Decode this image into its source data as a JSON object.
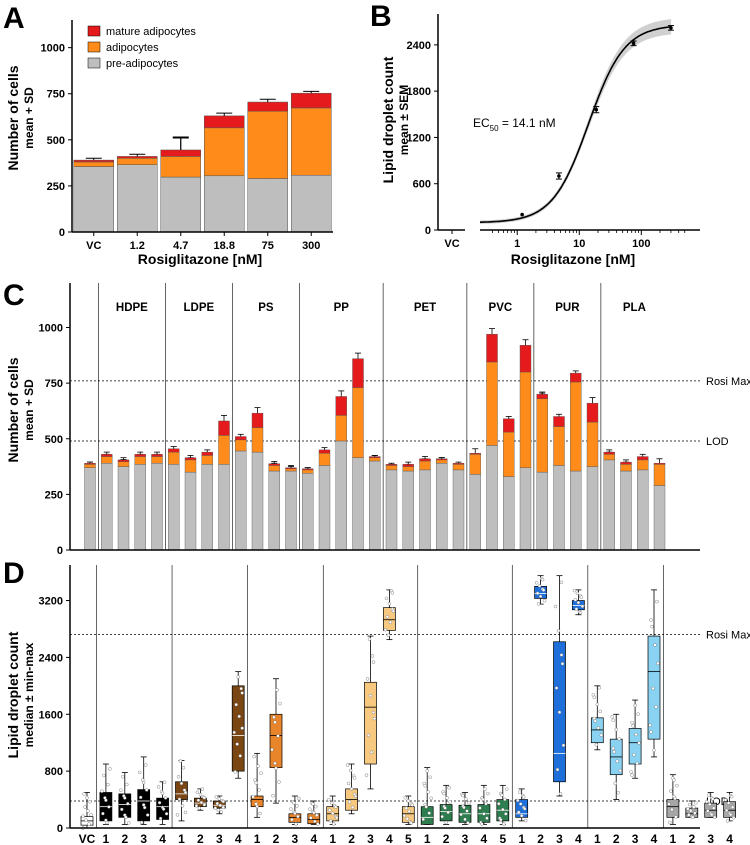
{
  "panels": {
    "a": "A",
    "b": "B",
    "c": "C",
    "d": "D"
  },
  "colors": {
    "mature": "#E41A1C",
    "adipo": "#FF8C1A",
    "pre": "#BEBEBE"
  },
  "chart_data": [
    {
      "id": "A",
      "type": "bar",
      "stacked": true,
      "categories": [
        "VC",
        "1.2",
        "4.7",
        "18.8",
        "75",
        "300"
      ],
      "series": [
        {
          "name": "pre-adipocytes",
          "values": [
            355,
            365,
            298,
            305,
            290,
            308
          ],
          "sd": [
            0,
            0,
            0,
            35,
            35,
            40
          ]
        },
        {
          "name": "adipocytes",
          "values": [
            25,
            35,
            112,
            260,
            365,
            365
          ],
          "sd": [
            0,
            0,
            100,
            45,
            45,
            45
          ]
        },
        {
          "name": "mature adipocytes",
          "values": [
            10,
            10,
            35,
            65,
            50,
            80
          ],
          "sd": [
            10,
            12,
            70,
            15,
            15,
            10
          ]
        }
      ],
      "legend": [
        "mature adipocytes",
        "adipocytes",
        "pre-adipocytes"
      ],
      "xlabel": "Rosiglitazone [nM]",
      "ylabel": "Number of cells",
      "ylabel_sub": "mean + SD",
      "yticks": [
        "0",
        "250",
        "500",
        "750",
        "1000"
      ],
      "ylim": [
        0,
        1150
      ]
    },
    {
      "id": "B",
      "type": "line",
      "model": "dose-response fit",
      "x": [
        1.2,
        4.7,
        18.8,
        75,
        300
      ],
      "y": [
        200,
        700,
        1560,
        2420,
        2620
      ],
      "sem": [
        0,
        40,
        40,
        30,
        30
      ],
      "vc": 100,
      "fit": {
        "bottom": 95,
        "top": 2660,
        "ec50": 14.1,
        "hill": 1.5
      },
      "annotation": {
        "main": "EC",
        "sub": "50",
        "rest": " = 14.1 nM"
      },
      "xlabel": "Rosiglitazone [nM]",
      "ylabel": "Lipid droplet count",
      "ylabel_sub": "mean ± SEM",
      "xticks": [
        "VC",
        "1",
        "10",
        "100"
      ],
      "yticks": [
        "0",
        "600",
        "1200",
        "1800",
        "2400"
      ],
      "ylim": [
        0,
        2800
      ]
    },
    {
      "id": "C",
      "type": "bar",
      "stacked": true,
      "ylabel": "Number of cells",
      "ylabel_sub": "mean + SD",
      "yticks": [
        "0",
        "250",
        "500",
        "750",
        "1000"
      ],
      "ylim": [
        0,
        1200
      ],
      "reference_lines": [
        {
          "label": "Rosi Max",
          "value": 760
        },
        {
          "label": "LOD",
          "value": 490
        }
      ],
      "groups": [
        {
          "name": "",
          "bars": [
            [
              370,
              15,
              5
            ]
          ]
        },
        {
          "name": "HDPE",
          "bars": [
            [
              390,
              30,
              10
            ],
            [
              375,
              22,
              8
            ],
            [
              385,
              35,
              10
            ],
            [
              390,
              30,
              10
            ]
          ]
        },
        {
          "name": "LDPE",
          "bars": [
            [
              385,
              55,
              15
            ],
            [
              350,
              55,
              10
            ],
            [
              385,
              40,
              15
            ],
            [
              385,
              130,
              65
            ]
          ]
        },
        {
          "name": "PS",
          "bars": [
            [
              445,
              50,
              15
            ],
            [
              440,
              110,
              65
            ],
            [
              355,
              25,
              8
            ],
            [
              355,
              10,
              5
            ]
          ]
        },
        {
          "name": "PP",
          "bars": [
            [
              345,
              15,
              5
            ],
            [
              380,
              55,
              15
            ],
            [
              490,
              115,
              85
            ],
            [
              415,
              315,
              130
            ],
            [
              400,
              15,
              5
            ]
          ]
        },
        {
          "name": "PET",
          "bars": [
            [
              360,
              20,
              5
            ],
            [
              355,
              20,
              10
            ],
            [
              360,
              40,
              10
            ],
            [
              390,
              15,
              5
            ],
            [
              360,
              25,
              5
            ]
          ]
        },
        {
          "name": "PVC",
          "bars": [
            [
              340,
              90,
              5
            ],
            [
              470,
              375,
              125
            ],
            [
              330,
              200,
              60
            ],
            [
              370,
              430,
              120
            ]
          ]
        },
        {
          "name": "PUR",
          "bars": [
            [
              350,
              330,
              20
            ],
            [
              380,
              175,
              45
            ],
            [
              355,
              400,
              40
            ],
            [
              375,
              200,
              85
            ]
          ]
        },
        {
          "name": "PLA",
          "bars": [
            [
              405,
              25,
              10
            ],
            [
              355,
              30,
              10
            ],
            [
              360,
              45,
              15
            ],
            [
              290,
              95,
              5
            ]
          ]
        }
      ]
    },
    {
      "id": "D",
      "type": "box",
      "ylabel": "Lipid droplet count",
      "ylabel_sub": "median ± min-max",
      "yticks": [
        "0",
        "800",
        "1600",
        "2400",
        "3200"
      ],
      "ylim": [
        0,
        3700
      ],
      "reference_lines": [
        {
          "label": "Rosi Max",
          "value": 2720
        },
        {
          "label": "LOD",
          "value": 380
        }
      ],
      "groups": [
        {
          "color": "#FFFFFF",
          "labels": [
            "VC"
          ],
          "boxes": [
            [
              0,
              40,
              100,
              160,
              500
            ]
          ]
        },
        {
          "color": "#000000",
          "labels": [
            "1",
            "2",
            "3",
            "4"
          ],
          "boxes": [
            [
              50,
              100,
              300,
              500,
              900
            ],
            [
              50,
              150,
              330,
              480,
              780
            ],
            [
              50,
              100,
              380,
              540,
              1000
            ],
            [
              50,
              120,
              300,
              420,
              650
            ]
          ]
        },
        {
          "color": "#7A4714",
          "labels": [
            "1",
            "2",
            "3",
            "4"
          ],
          "boxes": [
            [
              100,
              400,
              480,
              650,
              950
            ],
            [
              250,
              300,
              350,
              420,
              550
            ],
            [
              200,
              280,
              320,
              380,
              450
            ],
            [
              700,
              800,
              1300,
              2000,
              2200
            ]
          ]
        },
        {
          "color": "#E8852B",
          "labels": [
            "1",
            "2",
            "3",
            "4"
          ],
          "boxes": [
            [
              150,
              300,
              400,
              450,
              1050
            ],
            [
              350,
              850,
              1300,
              1600,
              2100
            ],
            [
              50,
              80,
              150,
              200,
              450
            ],
            [
              50,
              60,
              120,
              200,
              380
            ]
          ]
        },
        {
          "color": "#F7C87F",
          "labels": [
            "1",
            "2",
            "3",
            "4",
            "5"
          ],
          "boxes": [
            [
              50,
              100,
              200,
              300,
              450
            ],
            [
              200,
              250,
              400,
              550,
              900
            ],
            [
              550,
              900,
              1700,
              2050,
              2700
            ],
            [
              2650,
              2780,
              2930,
              3100,
              3350
            ],
            [
              50,
              80,
              200,
              300,
              450
            ]
          ]
        },
        {
          "color": "#2E7D4F",
          "labels": [
            "1",
            "2",
            "3",
            "4",
            "5"
          ],
          "boxes": [
            [
              50,
              50,
              150,
              300,
              850
            ],
            [
              50,
              100,
              230,
              330,
              600
            ],
            [
              50,
              80,
              200,
              320,
              500
            ],
            [
              50,
              80,
              200,
              330,
              600
            ],
            [
              50,
              100,
              250,
              400,
              600
            ]
          ]
        },
        {
          "color": "#1E6FD9",
          "labels": [
            "1",
            "2",
            "3",
            "4"
          ],
          "boxes": [
            [
              100,
              150,
              200,
              400,
              550
            ],
            [
              3150,
              3230,
              3300,
              3400,
              3550
            ],
            [
              450,
              650,
              1050,
              2620,
              3550
            ],
            [
              3000,
              3070,
              3130,
              3200,
              3350
            ]
          ]
        },
        {
          "color": "#8AD2F2",
          "labels": [
            "1",
            "2",
            "3",
            "4"
          ],
          "boxes": [
            [
              1100,
              1200,
              1380,
              1550,
              2000
            ],
            [
              400,
              750,
              1000,
              1250,
              1600
            ],
            [
              700,
              900,
              1200,
              1400,
              1800
            ],
            [
              1000,
              1250,
              2200,
              2700,
              3350
            ]
          ]
        },
        {
          "color": "#A6A6A6",
          "labels": [
            "1",
            "2",
            "3",
            "4"
          ],
          "boxes": [
            [
              50,
              150,
              300,
              400,
              750
            ],
            [
              150,
              150,
              200,
              280,
              380
            ],
            [
              150,
              150,
              250,
              350,
              500
            ],
            [
              100,
              150,
              250,
              370,
              500
            ]
          ]
        }
      ]
    }
  ]
}
